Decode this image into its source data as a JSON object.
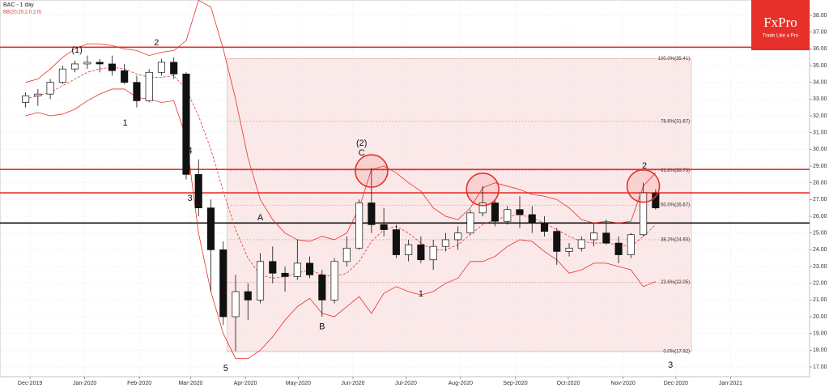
{
  "chart_data": {
    "type": "candlestick",
    "title": "BAC  - 1 day",
    "indicator": "BB(20,20,2,0,2.0)",
    "logo": {
      "name": "FxPro",
      "tagline": "Trade Like a Pro"
    },
    "xlim": [
      -1.57,
      63.96
    ],
    "ylim": [
      16.42,
      38.92
    ],
    "grid": true,
    "xticks": [
      {
        "value": 0.86,
        "label": "Dec-2019"
      },
      {
        "value": 5.29,
        "label": "Jan-2020"
      },
      {
        "value": 9.71,
        "label": "Feb-2020"
      },
      {
        "value": 13.86,
        "label": "Mar-2020"
      },
      {
        "value": 18.29,
        "label": "Apr-2020"
      },
      {
        "value": 22.57,
        "label": "May-2020"
      },
      {
        "value": 27,
        "label": "Jun-2020"
      },
      {
        "value": 31.29,
        "label": "Jul-2020"
      },
      {
        "value": 35.71,
        "label": "Aug-2020"
      },
      {
        "value": 40.14,
        "label": "Sep-2020"
      },
      {
        "value": 44.43,
        "label": "Oct-2020"
      },
      {
        "value": 48.86,
        "label": "Nov-2020"
      },
      {
        "value": 53.14,
        "label": "Dec-2020"
      },
      {
        "value": 57.57,
        "label": "Jan-2021"
      }
    ],
    "yticks": [
      {
        "value": 17,
        "label": "17.00"
      },
      {
        "value": 18,
        "label": "18.00"
      },
      {
        "value": 19,
        "label": "19.00"
      },
      {
        "value": 20,
        "label": "20.00"
      },
      {
        "value": 21,
        "label": "21.00"
      },
      {
        "value": 22,
        "label": "22.00"
      },
      {
        "value": 23,
        "label": "23.00"
      },
      {
        "value": 24,
        "label": "24.00"
      },
      {
        "value": 25,
        "label": "25.00"
      },
      {
        "value": 26,
        "label": "26.00"
      },
      {
        "value": 27,
        "label": "27.00"
      },
      {
        "value": 28,
        "label": "28.00"
      },
      {
        "value": 29,
        "label": "29.00"
      },
      {
        "value": 30,
        "label": "30.00"
      },
      {
        "value": 31,
        "label": "31.00"
      },
      {
        "value": 32,
        "label": "32.00"
      },
      {
        "value": 33,
        "label": "33.00"
      },
      {
        "value": 34,
        "label": "34.00"
      },
      {
        "value": 35,
        "label": "35.00"
      },
      {
        "value": 36,
        "label": "36.00"
      },
      {
        "value": 37,
        "label": "37.00"
      },
      {
        "value": 38,
        "label": "38.00"
      }
    ],
    "ohlc": [
      [
        32.8,
        33.4,
        32.5,
        33.2
      ],
      [
        33.2,
        33.6,
        32.6,
        33.3
      ],
      [
        33.3,
        34.2,
        33.0,
        34.0
      ],
      [
        34.0,
        35.0,
        33.9,
        34.8
      ],
      [
        34.8,
        35.3,
        34.6,
        35.1
      ],
      [
        35.1,
        35.6,
        34.8,
        35.2
      ],
      [
        35.2,
        35.4,
        34.6,
        35.1
      ],
      [
        35.1,
        35.6,
        34.4,
        34.7
      ],
      [
        34.7,
        35.1,
        33.9,
        34.0
      ],
      [
        34.0,
        34.4,
        32.5,
        32.9
      ],
      [
        32.9,
        34.8,
        32.8,
        34.6
      ],
      [
        34.6,
        35.4,
        34.4,
        35.2
      ],
      [
        35.2,
        35.5,
        34.2,
        34.5
      ],
      [
        34.5,
        34.6,
        28.2,
        28.5
      ],
      [
        28.5,
        29.4,
        26.0,
        26.5
      ],
      [
        26.5,
        27.0,
        21.5,
        24.0
      ],
      [
        24.0,
        24.5,
        19.5,
        20.0
      ],
      [
        20.0,
        22.5,
        17.95,
        21.5
      ],
      [
        21.5,
        22.0,
        19.8,
        21.0
      ],
      [
        21.0,
        23.8,
        20.8,
        23.3
      ],
      [
        23.3,
        24.2,
        22.0,
        22.6
      ],
      [
        22.6,
        23.0,
        21.5,
        22.4
      ],
      [
        22.4,
        24.6,
        22.2,
        23.2
      ],
      [
        23.2,
        23.6,
        22.3,
        22.5
      ],
      [
        22.5,
        22.8,
        20.0,
        21.0
      ],
      [
        21.0,
        23.5,
        20.8,
        23.3
      ],
      [
        23.3,
        24.8,
        23.0,
        24.1
      ],
      [
        24.1,
        27.0,
        24.0,
        26.8
      ],
      [
        26.8,
        28.9,
        25.0,
        25.5
      ],
      [
        25.5,
        26.5,
        24.8,
        25.2
      ],
      [
        25.2,
        25.5,
        23.5,
        23.7
      ],
      [
        23.7,
        24.6,
        23.3,
        24.3
      ],
      [
        24.3,
        24.8,
        23.2,
        23.4
      ],
      [
        23.4,
        24.6,
        22.8,
        24.2
      ],
      [
        24.2,
        25.0,
        23.9,
        24.6
      ],
      [
        24.6,
        25.4,
        24.0,
        25.0
      ],
      [
        25.0,
        26.4,
        24.9,
        26.2
      ],
      [
        26.2,
        27.8,
        26.0,
        26.8
      ],
      [
        26.8,
        27.0,
        25.4,
        25.7
      ],
      [
        25.7,
        26.6,
        25.5,
        26.4
      ],
      [
        26.4,
        27.2,
        25.3,
        26.1
      ],
      [
        26.1,
        26.6,
        25.0,
        25.6
      ],
      [
        25.6,
        26.0,
        24.8,
        25.1
      ],
      [
        25.1,
        25.3,
        23.1,
        23.9
      ],
      [
        23.9,
        24.4,
        23.6,
        24.1
      ],
      [
        24.1,
        24.8,
        23.9,
        24.6
      ],
      [
        24.6,
        25.6,
        24.2,
        25.0
      ],
      [
        25.0,
        25.8,
        24.3,
        24.4
      ],
      [
        24.4,
        24.8,
        23.2,
        23.7
      ],
      [
        23.7,
        25.0,
        23.5,
        24.9
      ],
      [
        24.9,
        28.0,
        24.8,
        27.4
      ],
      [
        27.4,
        27.6,
        26.4,
        26.5
      ]
    ],
    "bands": [
      {
        "color": "#e8302a",
        "dashed": false,
        "values": [
          34,
          34.2,
          34.8,
          35.5,
          36,
          36.3,
          36.3,
          36.2,
          36,
          35.9,
          35.6,
          35.8,
          35.9,
          36.5,
          38.9,
          38.5,
          36,
          33,
          29.5,
          27,
          25.8,
          25,
          24.6,
          24.5,
          24.8,
          24.6,
          25,
          26.5,
          28.8,
          29,
          28.6,
          28,
          27.5,
          26.5,
          26,
          25.8,
          26.5,
          27.7,
          28,
          27.8,
          27.6,
          27.3,
          27.2,
          27,
          26.5,
          25.8,
          25.6,
          25.7,
          25.6,
          25.7,
          27.8,
          28.6
        ]
      },
      {
        "color": "#e8302a",
        "dashed": true,
        "values": [
          33,
          33.2,
          33.4,
          33.8,
          34.2,
          34.6,
          34.8,
          34.9,
          34.8,
          34.5,
          34.3,
          34.3,
          34.4,
          33.6,
          32,
          30,
          27.5,
          25.2,
          23.5,
          22.5,
          22.3,
          22.4,
          22.6,
          22.8,
          22.5,
          22.4,
          22.6,
          23.3,
          24.5,
          25.2,
          25.4,
          25.0,
          24.4,
          24.0,
          24.0,
          24.3,
          24.9,
          25.5,
          25.8,
          26.0,
          26.1,
          25.9,
          25.6,
          25.2,
          24.8,
          24.5,
          24.4,
          24.4,
          24.3,
          24.2,
          24.8,
          25.5
        ]
      },
      {
        "color": "#e8302a",
        "dashed": false,
        "values": [
          32,
          32.2,
          32,
          32.1,
          32.4,
          32.9,
          33.3,
          33.6,
          33.6,
          33.1,
          33,
          32.8,
          32.9,
          30.7,
          25,
          21.5,
          19,
          17.5,
          17.5,
          18,
          18.8,
          19.8,
          20.6,
          21.1,
          20.2,
          20,
          20.6,
          21.2,
          20.2,
          21.4,
          21.8,
          21.5,
          21.3,
          21.5,
          22.0,
          22.3,
          23.3,
          23.3,
          23.6,
          24.2,
          24.6,
          24.5,
          23.9,
          23.4,
          22.6,
          22.8,
          23.2,
          23.2,
          23.0,
          22.8,
          21.8,
          22.1
        ]
      }
    ],
    "fib": {
      "x": [
        16.8,
        54.4
      ],
      "levels": [
        {
          "value": 35.41,
          "label": "100.0%(35.41)"
        },
        {
          "value": 31.67,
          "label": "78.6%(31.67)"
        },
        {
          "value": 28.73,
          "label": "61.8%(28.73)"
        },
        {
          "value": 26.67,
          "label": "50.0%(26.67)"
        },
        {
          "value": 24.6,
          "label": "38.2%(24.60)"
        },
        {
          "value": 22.05,
          "label": "23.6%(22.05)"
        },
        {
          "value": 17.92,
          "label": "0.0%(17.92)"
        }
      ]
    },
    "hlines": [
      {
        "value": 36.1,
        "color": "#e8302a"
      },
      {
        "value": 28.8,
        "color": "#e8302a"
      },
      {
        "value": 27.4,
        "color": "#e8302a"
      },
      {
        "value": 25.6,
        "color": "#111111"
      }
    ],
    "highlights": [
      28,
      37,
      50
    ],
    "annotations": [
      {
        "text": "(1)",
        "x": 4.66,
        "y": 35.92
      },
      {
        "text": "1",
        "x": 8.57,
        "y": 31.57
      },
      {
        "text": "2",
        "x": 11.1,
        "y": 36.35
      },
      {
        "text": "4",
        "x": 13.8,
        "y": 29.9
      },
      {
        "text": "3",
        "x": 13.8,
        "y": 27.07
      },
      {
        "text": "5",
        "x": 16.7,
        "y": 16.9
      },
      {
        "text": "A",
        "x": 19.5,
        "y": 25.9
      },
      {
        "text": "B",
        "x": 24.5,
        "y": 19.4
      },
      {
        "text": "(2)",
        "x": 27.7,
        "y": 30.36
      },
      {
        "text": "C",
        "x": 27.7,
        "y": 29.78
      },
      {
        "text": "1",
        "x": 32.5,
        "y": 21.36
      },
      {
        "text": "2",
        "x": 50.6,
        "y": 29.0
      },
      {
        "text": "3",
        "x": 52.7,
        "y": 17.1
      }
    ]
  }
}
